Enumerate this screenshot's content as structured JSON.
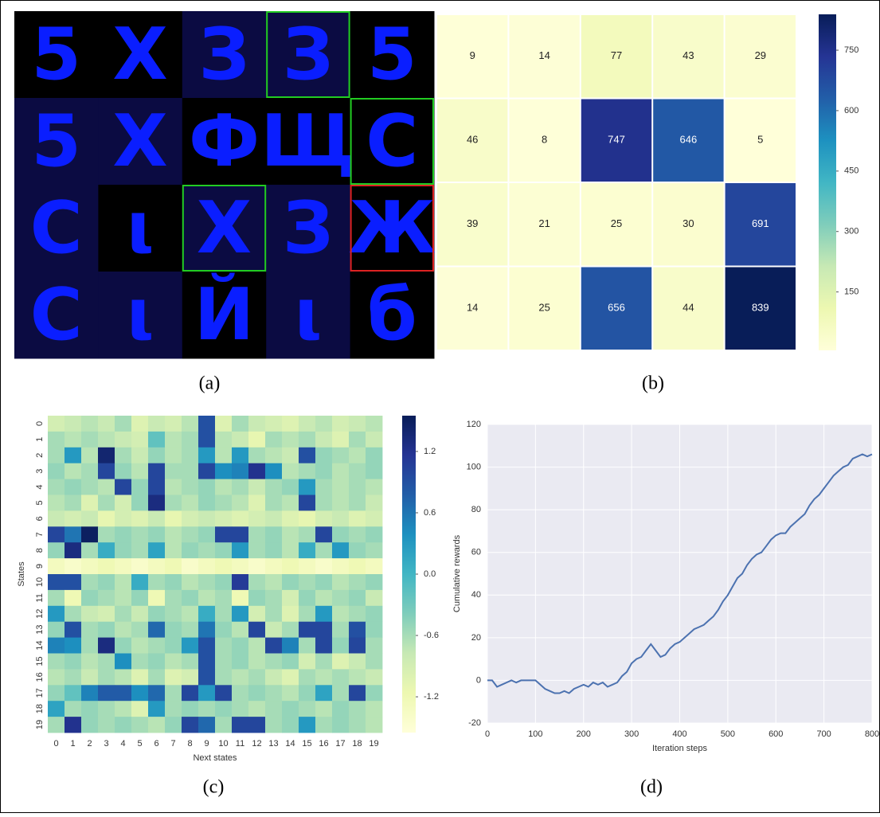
{
  "image_grid": {
    "panel_label": "(a)",
    "cells": [
      [
        {
          "char": "5",
          "bg": "#000000"
        },
        {
          "char": "X",
          "bg": "#000000"
        },
        {
          "char": "З",
          "bg": "#0b0b42"
        },
        {
          "char": "З",
          "bg": "#0b0b42",
          "frame": "#22cc22"
        },
        {
          "char": "5",
          "bg": "#000000"
        }
      ],
      [
        {
          "char": "5",
          "bg": "#0b0b42"
        },
        {
          "char": "X",
          "bg": "#0b0b42"
        },
        {
          "char": "Ф",
          "bg": "#000000"
        },
        {
          "char": "Щ",
          "bg": "#000000"
        },
        {
          "char": "С",
          "bg": "#000000",
          "frame": "#22cc22"
        }
      ],
      [
        {
          "char": "С",
          "bg": "#0b0b42"
        },
        {
          "char": "ι",
          "bg": "#000000"
        },
        {
          "char": "X",
          "bg": "#0b0b42",
          "frame": "#22cc22"
        },
        {
          "char": "З",
          "bg": "#0b0b42"
        },
        {
          "char": "Ж",
          "bg": "#000000",
          "frame": "#dd2222"
        }
      ],
      [
        {
          "char": "С",
          "bg": "#0b0b42"
        },
        {
          "char": "ι",
          "bg": "#0b0b42"
        },
        {
          "char": "Й",
          "bg": "#000000"
        },
        {
          "char": "ι",
          "bg": "#0b0b42"
        },
        {
          "char": "б",
          "bg": "#000000"
        }
      ]
    ]
  },
  "chart_data": [
    {
      "type": "heatmap",
      "panel_label": "(b)",
      "colormap": "YlGnBu",
      "annotate": true,
      "values": [
        [
          9,
          14,
          77,
          43,
          29
        ],
        [
          46,
          8,
          747,
          646,
          5
        ],
        [
          39,
          21,
          25,
          30,
          691
        ],
        [
          14,
          25,
          656,
          44,
          839
        ]
      ],
      "clim": [
        5,
        839
      ],
      "cticks": [
        150,
        300,
        450,
        600,
        750
      ]
    },
    {
      "type": "heatmap",
      "panel_label": "(c)",
      "colormap": "YlGnBu",
      "annotate": false,
      "xlabel": "Next states",
      "ylabel": "States",
      "x": [
        0,
        1,
        2,
        3,
        4,
        5,
        6,
        7,
        8,
        9,
        10,
        11,
        12,
        13,
        14,
        15,
        16,
        17,
        18,
        19
      ],
      "y": [
        0,
        1,
        2,
        3,
        4,
        5,
        6,
        7,
        8,
        9,
        10,
        11,
        12,
        13,
        14,
        15,
        16,
        17,
        18,
        19
      ],
      "values": [
        [
          -0.9,
          -0.8,
          -0.7,
          -0.8,
          -0.6,
          -1.0,
          -0.8,
          -0.9,
          -0.7,
          0.9,
          -1.0,
          -0.6,
          -0.8,
          -0.9,
          -1.0,
          -0.8,
          -0.7,
          -0.9,
          -0.8,
          -0.7
        ],
        [
          -0.6,
          -0.7,
          -0.6,
          -0.7,
          -0.8,
          -0.9,
          -0.2,
          -0.7,
          -0.6,
          0.9,
          -0.7,
          -0.8,
          -1.1,
          -0.6,
          -0.7,
          -0.6,
          -0.8,
          -1.0,
          -0.6,
          -0.8
        ],
        [
          -0.6,
          0.3,
          -0.7,
          1.4,
          -0.6,
          -0.8,
          -0.5,
          -0.7,
          -0.6,
          0.3,
          -0.7,
          0.3,
          -0.6,
          -0.7,
          -0.8,
          0.9,
          -0.5,
          -0.6,
          -0.7,
          -0.5
        ],
        [
          -0.5,
          -0.7,
          -0.6,
          1.0,
          -0.5,
          -0.7,
          1.0,
          -0.6,
          -0.6,
          1.0,
          0.4,
          0.5,
          1.2,
          0.4,
          -0.7,
          -0.6,
          -0.5,
          -0.7,
          -0.6,
          -0.5
        ],
        [
          -0.6,
          -0.5,
          -0.6,
          -0.7,
          1.0,
          -0.5,
          1.0,
          -0.7,
          -0.6,
          -0.5,
          -0.7,
          -0.6,
          -0.8,
          -0.6,
          -0.5,
          0.3,
          -0.6,
          -0.7,
          -0.6,
          -0.7
        ],
        [
          -0.7,
          -0.6,
          -1.0,
          -0.6,
          -0.9,
          -0.5,
          1.3,
          -0.6,
          -0.7,
          -0.5,
          -0.6,
          -0.7,
          -1.0,
          -0.6,
          -0.7,
          1.0,
          -0.6,
          -0.7,
          -0.6,
          -0.8
        ],
        [
          -0.8,
          -0.9,
          -0.8,
          -1.1,
          -0.9,
          -1.0,
          -0.8,
          -1.1,
          -0.9,
          -0.8,
          -0.9,
          -1.0,
          -0.9,
          -0.8,
          -1.0,
          -1.1,
          -0.9,
          -0.8,
          -1.0,
          -0.9
        ],
        [
          1.0,
          0.6,
          1.5,
          -0.6,
          -0.5,
          -0.6,
          -0.5,
          -0.7,
          -0.6,
          -0.5,
          1.0,
          1.0,
          -0.6,
          -0.5,
          -0.7,
          -0.6,
          1.0,
          -0.5,
          -0.6,
          -0.5
        ],
        [
          -0.5,
          1.3,
          -0.6,
          0.1,
          -0.5,
          -0.6,
          0.2,
          -0.7,
          -0.5,
          -0.6,
          -0.5,
          0.3,
          -0.6,
          -0.5,
          -0.7,
          0.1,
          -0.6,
          0.3,
          -0.5,
          -0.6
        ],
        [
          -1.3,
          -1.4,
          -1.3,
          -1.2,
          -1.3,
          -1.4,
          -1.3,
          -1.2,
          -1.4,
          -1.3,
          -1.2,
          -1.3,
          -1.4,
          -1.3,
          -1.2,
          -1.3,
          -1.4,
          -1.3,
          -1.2,
          -1.3
        ],
        [
          0.9,
          0.9,
          -0.6,
          -0.5,
          -0.7,
          0.1,
          -0.6,
          -0.5,
          -0.7,
          -0.6,
          -0.5,
          1.1,
          -0.6,
          -0.7,
          -0.5,
          -0.6,
          -0.5,
          -0.7,
          -0.6,
          -0.5
        ],
        [
          -0.6,
          -1.2,
          -0.5,
          -0.6,
          -0.7,
          -0.5,
          -1.2,
          -0.6,
          -0.5,
          -0.7,
          -0.6,
          -1.2,
          -0.5,
          -0.6,
          -0.9,
          -0.5,
          -0.7,
          -0.6,
          -0.5,
          -0.8
        ],
        [
          0.3,
          -0.6,
          -0.8,
          -0.9,
          -0.6,
          -0.8,
          -0.5,
          -0.6,
          -0.7,
          0.1,
          -0.6,
          0.3,
          -0.9,
          -0.6,
          -1.0,
          -0.6,
          0.3,
          -0.7,
          -0.6,
          -0.5
        ],
        [
          -0.5,
          0.9,
          -0.6,
          -0.5,
          -0.7,
          -0.6,
          0.7,
          -0.5,
          -0.6,
          0.6,
          -0.5,
          -0.7,
          1.0,
          -0.8,
          -0.6,
          1.0,
          1.0,
          -0.6,
          0.9,
          -0.5
        ],
        [
          0.5,
          0.4,
          -0.6,
          1.3,
          -0.5,
          -0.7,
          -0.6,
          -0.5,
          0.3,
          0.9,
          -0.6,
          -0.5,
          -0.7,
          1.0,
          0.5,
          -0.6,
          1.0,
          -0.5,
          1.0,
          -0.6
        ],
        [
          -0.6,
          -0.5,
          -0.7,
          -0.6,
          0.4,
          -0.6,
          -0.5,
          -0.7,
          -0.6,
          0.9,
          -0.6,
          -0.5,
          -0.7,
          -0.6,
          -0.5,
          -0.9,
          -0.6,
          -1.0,
          -0.8,
          -0.6
        ],
        [
          -0.7,
          -0.6,
          -0.8,
          -0.6,
          -0.7,
          -1.0,
          -0.6,
          -1.0,
          -0.9,
          0.9,
          -0.6,
          -0.7,
          -0.6,
          -0.8,
          -1.0,
          -0.6,
          -0.7,
          -0.6,
          -0.7,
          -0.8
        ],
        [
          -0.5,
          -0.2,
          0.5,
          0.8,
          0.8,
          0.4,
          0.7,
          -0.6,
          1.0,
          0.3,
          1.0,
          -0.6,
          -0.5,
          -0.6,
          -0.7,
          -0.5,
          0.2,
          -0.6,
          1.0,
          -0.5
        ],
        [
          0.2,
          -0.6,
          -0.5,
          -0.6,
          -0.7,
          -1.0,
          0.3,
          -0.6,
          -0.5,
          -0.6,
          -0.5,
          -0.6,
          -0.7,
          -0.6,
          -0.5,
          -0.6,
          -0.7,
          -0.5,
          -0.6,
          -0.7
        ],
        [
          -0.6,
          1.2,
          -0.5,
          -0.6,
          -0.5,
          -0.6,
          -0.7,
          -0.5,
          1.0,
          0.7,
          -0.6,
          1.0,
          1.0,
          -0.6,
          -0.5,
          0.3,
          -0.6,
          -0.5,
          -0.6,
          -0.7
        ]
      ],
      "clim": [
        -1.55,
        1.55
      ],
      "cticks": [
        1.2,
        0.6,
        {
          "value": 0,
          "label": "0.0"
        },
        -0.6,
        -1.2
      ]
    },
    {
      "type": "line",
      "panel_label": "(d)",
      "xlabel": "Iteration steps",
      "ylabel": "Cumulative rewards",
      "color": "#4c72b0",
      "background": "#eaeaf2",
      "grid": true,
      "x": [
        0,
        10,
        20,
        30,
        40,
        50,
        60,
        70,
        80,
        90,
        100,
        110,
        120,
        130,
        140,
        150,
        160,
        170,
        180,
        190,
        200,
        210,
        220,
        230,
        240,
        250,
        260,
        270,
        280,
        290,
        300,
        310,
        320,
        330,
        340,
        350,
        360,
        370,
        380,
        390,
        400,
        410,
        420,
        430,
        440,
        450,
        460,
        470,
        480,
        490,
        500,
        510,
        520,
        530,
        540,
        550,
        560,
        570,
        580,
        590,
        600,
        610,
        620,
        630,
        640,
        650,
        660,
        670,
        680,
        690,
        700,
        710,
        720,
        730,
        740,
        750,
        760,
        770,
        780,
        790,
        800
      ],
      "values": [
        0,
        0,
        -3,
        -2,
        -1,
        0,
        -1,
        0,
        0,
        0,
        0,
        -2,
        -4,
        -5,
        -6,
        -6,
        -5,
        -6,
        -4,
        -3,
        -2,
        -3,
        -1,
        -2,
        -1,
        -3,
        -2,
        -1,
        2,
        4,
        8,
        10,
        11,
        14,
        17,
        14,
        11,
        12,
        15,
        17,
        18,
        20,
        22,
        24,
        25,
        26,
        28,
        30,
        33,
        37,
        40,
        44,
        48,
        50,
        54,
        57,
        59,
        60,
        63,
        66,
        68,
        69,
        69,
        72,
        74,
        76,
        78,
        82,
        85,
        87,
        90,
        93,
        96,
        98,
        100,
        101,
        104,
        105,
        106,
        105,
        106
      ],
      "xlim": [
        0,
        800
      ],
      "ylim": [
        -20,
        120
      ],
      "xticks": [
        0,
        100,
        200,
        300,
        400,
        500,
        600,
        700,
        800
      ],
      "yticks": [
        -20,
        0,
        20,
        40,
        60,
        80,
        100,
        120
      ]
    }
  ]
}
